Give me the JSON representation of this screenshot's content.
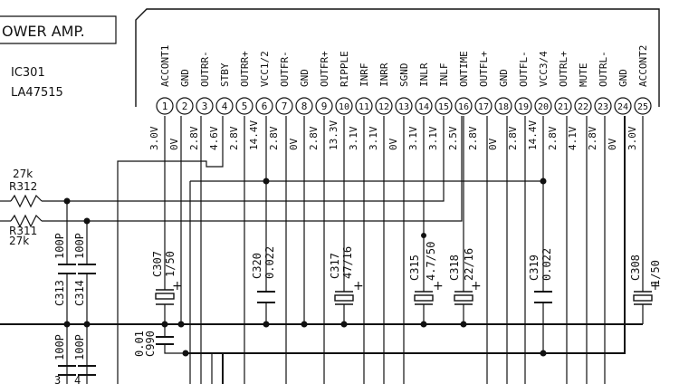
{
  "title_box": {
    "text": "OWER  AMP."
  },
  "ic": {
    "ref": "IC301",
    "part": "LA47515"
  },
  "pins": [
    {
      "num": "1",
      "name": "ACCONT1",
      "volt": "3.0V"
    },
    {
      "num": "2",
      "name": "GND",
      "volt": "0V"
    },
    {
      "num": "3",
      "name": "OUTRR-",
      "volt": "2.8V"
    },
    {
      "num": "4",
      "name": "STBY",
      "volt": "4.6V"
    },
    {
      "num": "5",
      "name": "OUTRR+",
      "volt": "2.8V"
    },
    {
      "num": "6",
      "name": "VCC1/2",
      "volt": "14.4V"
    },
    {
      "num": "7",
      "name": "OUTFR-",
      "volt": "2.8V"
    },
    {
      "num": "8",
      "name": "GND",
      "volt": "0V"
    },
    {
      "num": "9",
      "name": "OUTFR+",
      "volt": "2.8V"
    },
    {
      "num": "10",
      "name": "RIPPLE",
      "volt": "13.3V"
    },
    {
      "num": "11",
      "name": "INRF",
      "volt": "3.1V"
    },
    {
      "num": "12",
      "name": "INRR",
      "volt": "3.1V"
    },
    {
      "num": "13",
      "name": "SGND",
      "volt": "0V"
    },
    {
      "num": "14",
      "name": "INLR",
      "volt": "3.1V"
    },
    {
      "num": "15",
      "name": "INLF",
      "volt": "3.1V"
    },
    {
      "num": "16",
      "name": "ONTIME",
      "volt": "2.5V"
    },
    {
      "num": "17",
      "name": "OUTFL+",
      "volt": "2.8V"
    },
    {
      "num": "18",
      "name": "GND",
      "volt": "0V"
    },
    {
      "num": "19",
      "name": "OUTFL-",
      "volt": "2.8V"
    },
    {
      "num": "20",
      "name": "VCC3/4",
      "volt": "14.4V"
    },
    {
      "num": "21",
      "name": "OUTRL+",
      "volt": "2.8V"
    },
    {
      "num": "22",
      "name": "MUTE",
      "volt": "4.1V"
    },
    {
      "num": "23",
      "name": "OUTRL-",
      "volt": "2.8V"
    },
    {
      "num": "24",
      "name": "GND",
      "volt": "0V"
    },
    {
      "num": "25",
      "name": "ACCONT2",
      "volt": "3.0V"
    }
  ],
  "resistors": [
    {
      "ref": "R312",
      "value": "27k"
    },
    {
      "ref": "R311",
      "value": "27k"
    }
  ],
  "capacitors": [
    {
      "ref": "C313",
      "value": "100P"
    },
    {
      "ref": "C314",
      "value": "100P"
    },
    {
      "ref": "C307",
      "value": "1/50"
    },
    {
      "ref": "C320",
      "value": "0.022"
    },
    {
      "ref": "C317",
      "value": "47/16"
    },
    {
      "ref": "C315",
      "value": "4.7/50"
    },
    {
      "ref": "C318",
      "value": "22/16"
    },
    {
      "ref": "C319",
      "value": "0.022"
    },
    {
      "ref": "C308",
      "value": "1/50"
    },
    {
      "ref": "C990",
      "value": "0.01"
    },
    {
      "ref": "C_lower_a",
      "value": "100P"
    },
    {
      "ref": "C_lower_b",
      "value": "100P"
    }
  ],
  "polarity": {
    "plus": "+"
  },
  "partial_labels": {
    "lower_left_a": "3",
    "lower_left_b": "4"
  }
}
